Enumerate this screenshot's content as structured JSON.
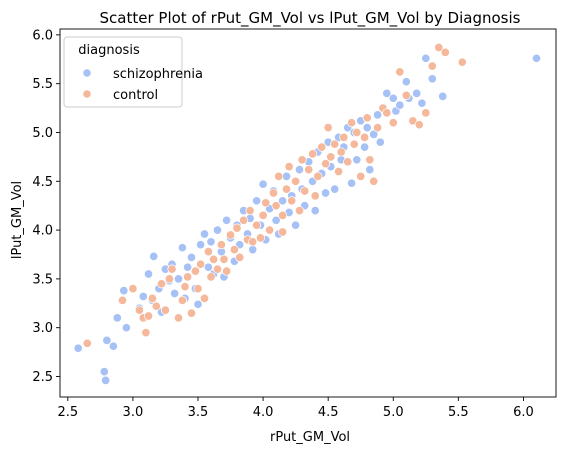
{
  "chart_data": {
    "type": "scatter",
    "title": "Scatter Plot of rPut_GM_Vol vs lPut_GM_Vol by Diagnosis",
    "xlabel": "rPut_GM_Vol",
    "ylabel": "lPut_GM_Vol",
    "xlim": [
      2.44,
      6.25
    ],
    "ylim": [
      2.29,
      6.06
    ],
    "x_ticks": [
      "2.5",
      "3.0",
      "3.5",
      "4.0",
      "4.5",
      "5.0",
      "5.5",
      "6.0"
    ],
    "y_ticks": [
      "2.5",
      "3.0",
      "3.5",
      "4.0",
      "4.5",
      "5.0",
      "5.5",
      "6.0"
    ],
    "grid": false,
    "legend": {
      "title": "diagnosis",
      "placement": "top-left"
    },
    "series": [
      {
        "name": "schizophrenia",
        "color": "#a6c1f5",
        "points": [
          [
            2.58,
            2.79
          ],
          [
            2.78,
            2.55
          ],
          [
            2.79,
            2.46
          ],
          [
            2.8,
            2.87
          ],
          [
            2.85,
            2.81
          ],
          [
            2.88,
            3.1
          ],
          [
            2.93,
            3.38
          ],
          [
            2.95,
            3.0
          ],
          [
            3.05,
            3.2
          ],
          [
            3.08,
            3.32
          ],
          [
            3.12,
            3.55
          ],
          [
            3.15,
            3.28
          ],
          [
            3.16,
            3.73
          ],
          [
            3.2,
            3.4
          ],
          [
            3.22,
            3.16
          ],
          [
            3.25,
            3.6
          ],
          [
            3.28,
            3.48
          ],
          [
            3.3,
            3.65
          ],
          [
            3.32,
            3.35
          ],
          [
            3.35,
            3.5
          ],
          [
            3.38,
            3.82
          ],
          [
            3.4,
            3.3
          ],
          [
            3.42,
            3.62
          ],
          [
            3.45,
            3.72
          ],
          [
            3.48,
            3.4
          ],
          [
            3.5,
            3.24
          ],
          [
            3.52,
            3.85
          ],
          [
            3.55,
            3.96
          ],
          [
            3.58,
            3.62
          ],
          [
            3.6,
            3.88
          ],
          [
            3.62,
            3.55
          ],
          [
            3.65,
            4.0
          ],
          [
            3.68,
            3.78
          ],
          [
            3.7,
            3.52
          ],
          [
            3.72,
            4.1
          ],
          [
            3.75,
            3.92
          ],
          [
            3.78,
            3.68
          ],
          [
            3.8,
            4.05
          ],
          [
            3.82,
            3.85
          ],
          [
            3.85,
            4.2
          ],
          [
            3.88,
            3.96
          ],
          [
            3.9,
            4.12
          ],
          [
            3.92,
            3.8
          ],
          [
            3.95,
            4.3
          ],
          [
            3.98,
            4.05
          ],
          [
            4.0,
            4.47
          ],
          [
            4.02,
            3.9
          ],
          [
            4.05,
            4.22
          ],
          [
            4.08,
            4.4
          ],
          [
            4.1,
            4.1
          ],
          [
            4.12,
            3.96
          ],
          [
            4.15,
            4.3
          ],
          [
            4.18,
            4.55
          ],
          [
            4.2,
            4.18
          ],
          [
            4.22,
            4.35
          ],
          [
            4.25,
            4.05
          ],
          [
            4.28,
            4.62
          ],
          [
            4.3,
            4.42
          ],
          [
            4.32,
            4.25
          ],
          [
            4.35,
            4.7
          ],
          [
            4.38,
            4.5
          ],
          [
            4.4,
            4.2
          ],
          [
            4.42,
            4.8
          ],
          [
            4.45,
            4.58
          ],
          [
            4.48,
            4.38
          ],
          [
            4.5,
            4.9
          ],
          [
            4.52,
            4.65
          ],
          [
            4.55,
            4.42
          ],
          [
            4.58,
            4.95
          ],
          [
            4.6,
            4.72
          ],
          [
            4.62,
            4.85
          ],
          [
            4.65,
            5.05
          ],
          [
            4.68,
            4.48
          ],
          [
            4.7,
            5.0
          ],
          [
            4.72,
            4.72
          ],
          [
            4.75,
            5.12
          ],
          [
            4.78,
            4.85
          ],
          [
            4.8,
            5.05
          ],
          [
            4.82,
            4.62
          ],
          [
            4.85,
            4.98
          ],
          [
            4.88,
            5.18
          ],
          [
            4.9,
            4.9
          ],
          [
            4.95,
            5.4
          ],
          [
            5.0,
            5.35
          ],
          [
            5.02,
            5.22
          ],
          [
            5.05,
            5.28
          ],
          [
            5.1,
            5.52
          ],
          [
            5.12,
            5.35
          ],
          [
            5.18,
            5.4
          ],
          [
            5.22,
            5.3
          ],
          [
            5.25,
            5.76
          ],
          [
            5.3,
            5.55
          ],
          [
            5.38,
            5.37
          ],
          [
            6.1,
            5.76
          ]
        ]
      },
      {
        "name": "control",
        "color": "#f5b89b",
        "points": [
          [
            2.65,
            2.84
          ],
          [
            2.92,
            3.28
          ],
          [
            3.0,
            3.4
          ],
          [
            3.05,
            3.18
          ],
          [
            3.08,
            3.1
          ],
          [
            3.1,
            2.95
          ],
          [
            3.12,
            3.12
          ],
          [
            3.15,
            3.3
          ],
          [
            3.18,
            3.22
          ],
          [
            3.22,
            3.45
          ],
          [
            3.25,
            3.18
          ],
          [
            3.28,
            3.5
          ],
          [
            3.3,
            3.6
          ],
          [
            3.35,
            3.1
          ],
          [
            3.38,
            3.28
          ],
          [
            3.4,
            3.42
          ],
          [
            3.42,
            3.52
          ],
          [
            3.45,
            3.15
          ],
          [
            3.48,
            3.58
          ],
          [
            3.5,
            3.4
          ],
          [
            3.52,
            3.65
          ],
          [
            3.55,
            3.3
          ],
          [
            3.58,
            3.78
          ],
          [
            3.6,
            3.52
          ],
          [
            3.62,
            3.7
          ],
          [
            3.65,
            3.6
          ],
          [
            3.68,
            3.85
          ],
          [
            3.7,
            3.7
          ],
          [
            3.72,
            3.58
          ],
          [
            3.75,
            3.95
          ],
          [
            3.78,
            3.8
          ],
          [
            3.8,
            4.02
          ],
          [
            3.82,
            3.72
          ],
          [
            3.85,
            4.1
          ],
          [
            3.88,
            3.9
          ],
          [
            3.9,
            4.2
          ],
          [
            3.92,
            3.88
          ],
          [
            3.95,
            4.05
          ],
          [
            3.98,
            3.92
          ],
          [
            4.0,
            4.15
          ],
          [
            4.02,
            4.28
          ],
          [
            4.05,
            4.0
          ],
          [
            4.08,
            4.38
          ],
          [
            4.1,
            4.25
          ],
          [
            4.12,
            4.55
          ],
          [
            4.15,
            4.15
          ],
          [
            4.18,
            4.42
          ],
          [
            4.2,
            4.65
          ],
          [
            4.22,
            4.3
          ],
          [
            4.25,
            4.5
          ],
          [
            4.28,
            4.2
          ],
          [
            4.3,
            4.72
          ],
          [
            4.32,
            4.4
          ],
          [
            4.35,
            4.62
          ],
          [
            4.38,
            4.78
          ],
          [
            4.4,
            4.35
          ],
          [
            4.42,
            4.55
          ],
          [
            4.45,
            4.85
          ],
          [
            4.48,
            4.68
          ],
          [
            4.5,
            5.05
          ],
          [
            4.52,
            4.75
          ],
          [
            4.55,
            4.88
          ],
          [
            4.58,
            4.6
          ],
          [
            4.6,
            4.8
          ],
          [
            4.62,
            4.95
          ],
          [
            4.65,
            4.7
          ],
          [
            4.68,
            5.1
          ],
          [
            4.7,
            4.88
          ],
          [
            4.72,
            5.0
          ],
          [
            4.75,
            4.55
          ],
          [
            4.78,
            4.95
          ],
          [
            4.8,
            5.15
          ],
          [
            4.82,
            4.72
          ],
          [
            4.85,
            4.5
          ],
          [
            4.88,
            5.05
          ],
          [
            4.92,
            5.25
          ],
          [
            4.95,
            5.2
          ],
          [
            5.0,
            5.1
          ],
          [
            5.05,
            5.62
          ],
          [
            5.1,
            5.38
          ],
          [
            5.15,
            5.12
          ],
          [
            5.2,
            5.08
          ],
          [
            5.25,
            5.2
          ],
          [
            5.3,
            5.68
          ],
          [
            5.35,
            5.87
          ],
          [
            5.4,
            5.82
          ],
          [
            5.53,
            5.72
          ],
          [
            4.15,
            3.98
          ]
        ]
      }
    ]
  }
}
